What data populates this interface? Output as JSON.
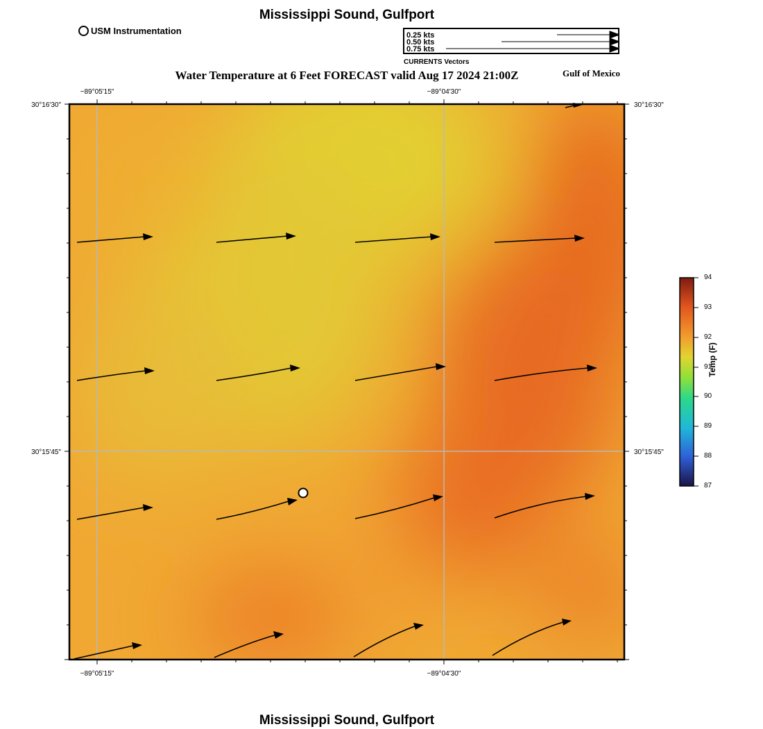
{
  "title": "Mississippi Sound, Gulfport",
  "subtitle": "Water Temperature at 6 Feet FORECAST valid Aug 17 2024 21:00Z",
  "region_label": "Gulf of Mexico",
  "footer_title": "Mississippi Sound, Gulfport",
  "station_legend": {
    "label": "USM Instrumentation",
    "marker_icon": "circle-marker-icon"
  },
  "vector_legend": {
    "entries": [
      {
        "label": "0.25 kts",
        "speed_kts": 0.25
      },
      {
        "label": "0.50 kts",
        "speed_kts": 0.5
      },
      {
        "label": "0.75 kts",
        "speed_kts": 0.75
      }
    ],
    "caption": "CURRENTS Vectors"
  },
  "axes": {
    "x_ticks": [
      "−89°05'15\"",
      "−89°04'30\""
    ],
    "y_ticks": [
      "30°16'30\"",
      "30°15'45\""
    ]
  },
  "colorbar": {
    "title": "Temp (F)",
    "min": 87,
    "max": 94,
    "ticks": [
      "87",
      "88",
      "89",
      "90",
      "91",
      "92",
      "93",
      "94"
    ],
    "colors": [
      "#1a1446",
      "#2f5fd8",
      "#1fb8d8",
      "#2cd88a",
      "#8fe03a",
      "#e2d430",
      "#f29a2e",
      "#e2561e",
      "#7e1b10"
    ]
  },
  "field_colors": {
    "base": "#f2a533",
    "cool": "#e2cf32",
    "warm": "#e8661d"
  },
  "station": {
    "name": "USM Instrumentation"
  }
}
